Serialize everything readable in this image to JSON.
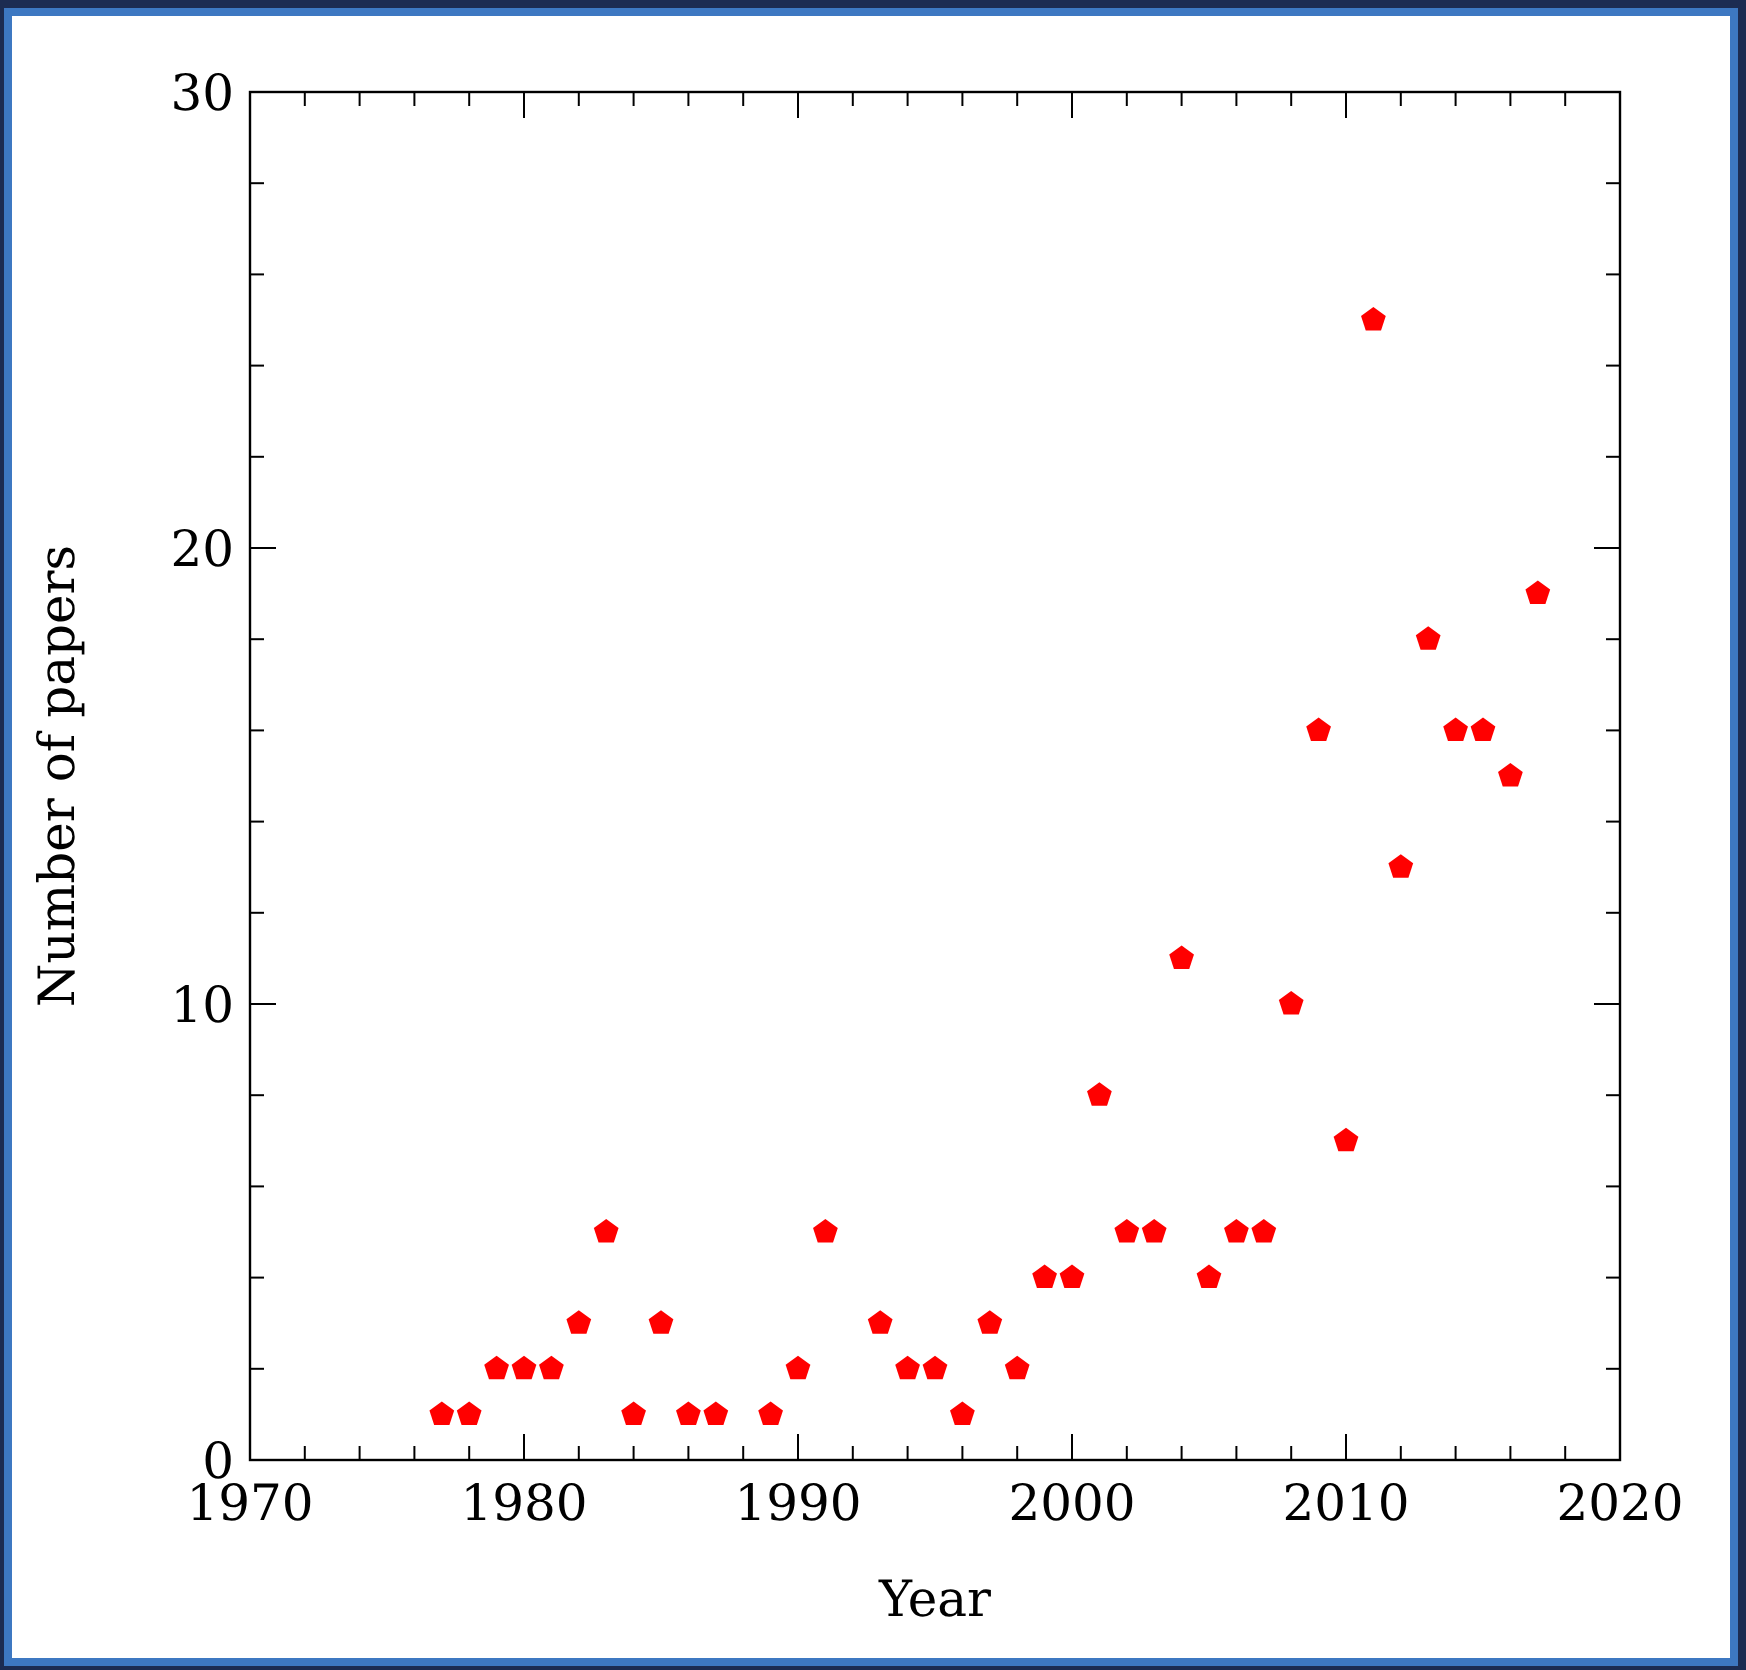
{
  "chart_data": {
    "type": "scatter",
    "xlabel": "Year",
    "ylabel": "Number of papers",
    "x": [
      1977,
      1978,
      1979,
      1980,
      1981,
      1982,
      1983,
      1984,
      1985,
      1986,
      1987,
      1989,
      1990,
      1991,
      1993,
      1994,
      1995,
      1996,
      1997,
      1998,
      1999,
      2000,
      2001,
      2002,
      2003,
      2004,
      2005,
      2006,
      2007,
      2008,
      2009,
      2010,
      2011,
      2012,
      2013,
      2014,
      2015,
      2016,
      2017
    ],
    "values": [
      1,
      1,
      2,
      2,
      2,
      3,
      5,
      1,
      3,
      1,
      1,
      1,
      2,
      5,
      3,
      2,
      2,
      1,
      3,
      2,
      4,
      4,
      8,
      5,
      5,
      11,
      4,
      5,
      5,
      10,
      16,
      7,
      25,
      13,
      18,
      16,
      16,
      15,
      19
    ],
    "color": "#ff0000",
    "xlim": [
      1970,
      2020
    ],
    "ylim": [
      0,
      30
    ],
    "xticks": [
      1970,
      {
        "value": 1972,
        "label": null
      },
      {
        "value": 1974,
        "label": null
      },
      {
        "value": 1976,
        "label": null
      },
      {
        "value": 1978,
        "label": null
      },
      1980,
      {
        "value": 1982,
        "label": null
      },
      {
        "value": 1984,
        "label": null
      },
      {
        "value": 1986,
        "label": null
      },
      {
        "value": 1988,
        "label": null
      },
      1990,
      {
        "value": 1992,
        "label": null
      },
      {
        "value": 1994,
        "label": null
      },
      {
        "value": 1996,
        "label": null
      },
      {
        "value": 1998,
        "label": null
      },
      2000,
      {
        "value": 2002,
        "label": null
      },
      {
        "value": 2004,
        "label": null
      },
      {
        "value": 2006,
        "label": null
      },
      {
        "value": 2008,
        "label": null
      },
      2010,
      {
        "value": 2012,
        "label": null
      },
      {
        "value": 2014,
        "label": null
      },
      {
        "value": 2016,
        "label": null
      },
      {
        "value": 2018,
        "label": null
      },
      2020
    ],
    "yticks": [
      0,
      {
        "value": 2,
        "label": null
      },
      {
        "value": 4,
        "label": null
      },
      {
        "value": 6,
        "label": null
      },
      {
        "value": 8,
        "label": null
      },
      10,
      {
        "value": 12,
        "label": null
      },
      {
        "value": 14,
        "label": null
      },
      {
        "value": 16,
        "label": null
      },
      {
        "value": 18,
        "label": null
      },
      20,
      {
        "value": 22,
        "label": null
      },
      {
        "value": 24,
        "label": null
      },
      {
        "value": 26,
        "label": null
      },
      {
        "value": 28,
        "label": null
      },
      30
    ],
    "grid": false
  }
}
